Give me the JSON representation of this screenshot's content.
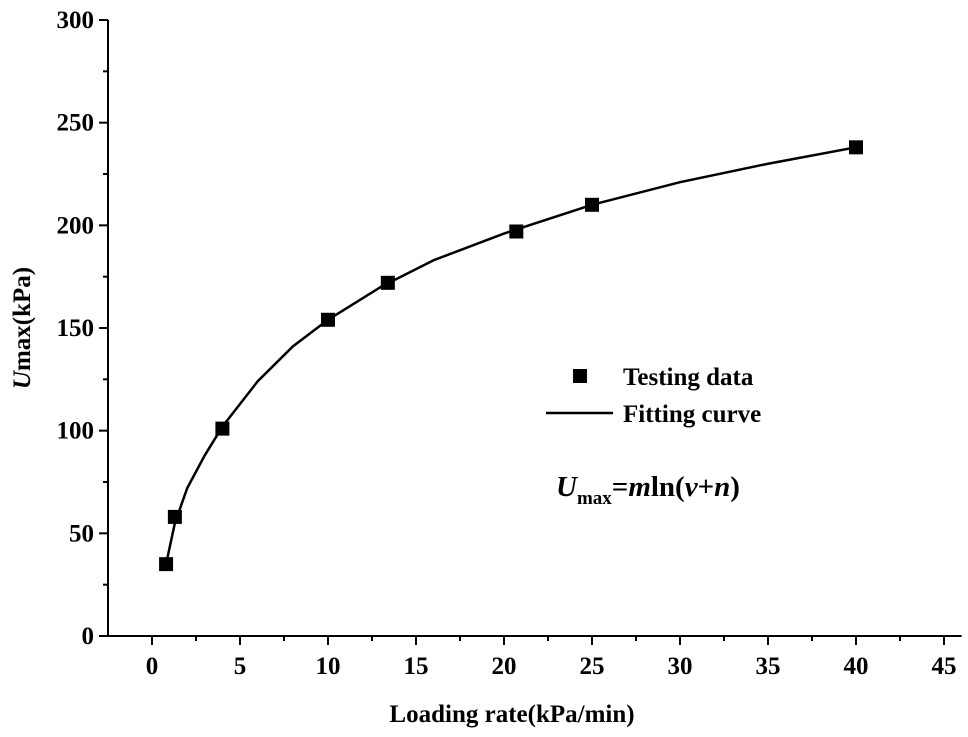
{
  "chart_data": {
    "type": "scatter",
    "xlabel": "Loading rate(kPa/min)",
    "ylabel_parts": [
      "U",
      "max(kPa)"
    ],
    "xlim": [
      -2.5,
      46
    ],
    "ylim": [
      0,
      300
    ],
    "xticks": [
      0,
      5,
      10,
      15,
      20,
      25,
      30,
      35,
      40,
      45
    ],
    "yticks": [
      0,
      50,
      100,
      150,
      200,
      250,
      300
    ],
    "series": [
      {
        "name": "Testing data",
        "color": "#000000",
        "kind": "marker",
        "x": [
          0.8,
          1.3,
          4,
          10,
          13.4,
          20.7,
          25,
          40
        ],
        "values": [
          35,
          58,
          101,
          154,
          172,
          197,
          210,
          238
        ]
      },
      {
        "name": "Fitting curve",
        "color": "#000000",
        "kind": "line",
        "x": [
          0.8,
          1.3,
          2,
          3,
          4,
          6,
          8,
          10,
          13,
          16,
          20,
          25,
          30,
          35,
          40
        ],
        "values": [
          35,
          55,
          72,
          88,
          102,
          124,
          141,
          154,
          170,
          183,
          196,
          210,
          221,
          230,
          238
        ]
      }
    ],
    "annotation_parts": [
      "U",
      "max",
      "=",
      "m",
      "ln(",
      "v",
      "+",
      "n",
      ")"
    ]
  }
}
